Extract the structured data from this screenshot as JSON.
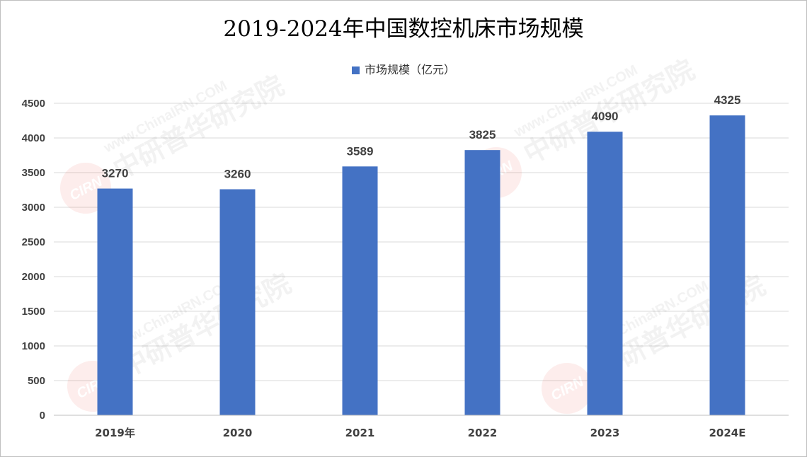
{
  "chart_data": {
    "type": "bar",
    "title": "2019-2024年中国数控机床市场规模",
    "categories": [
      "2019年",
      "2020",
      "2021",
      "2022",
      "2023",
      "2024E"
    ],
    "series": [
      {
        "name": "市场规模（亿元）",
        "values": [
          3270,
          3260,
          3589,
          3825,
          4090,
          4325
        ]
      }
    ],
    "data_labels": [
      "3270",
      "3260",
      "3589",
      "3825",
      "4090",
      "4325"
    ],
    "yticks": [
      "0",
      "500",
      "1000",
      "1500",
      "2000",
      "2500",
      "3000",
      "3500",
      "4000",
      "4500"
    ],
    "ylim": [
      0,
      4500
    ],
    "xlabel": "",
    "ylabel": "",
    "grid": true,
    "legend_position": "top",
    "colors": {
      "bar": "#4472C4",
      "grid": "#d9d9d9",
      "text": "#404040"
    }
  },
  "watermark": {
    "site": "www.ChinaIRN.COM",
    "name": "中研普华研究院",
    "logo": "CIRN"
  }
}
